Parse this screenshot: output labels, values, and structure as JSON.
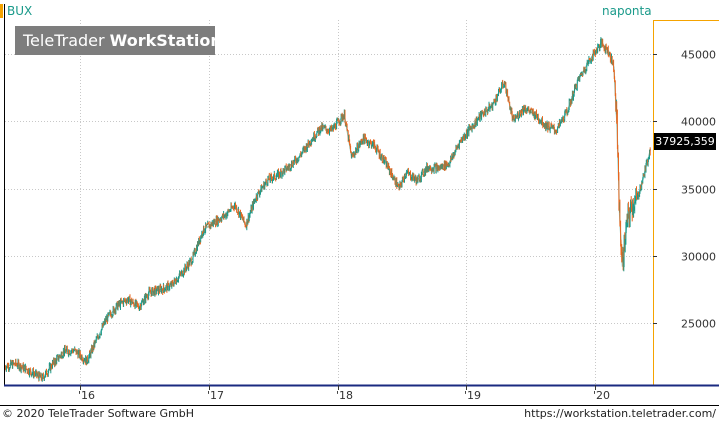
{
  "header": {
    "symbol": "BUX",
    "interval": "naponta"
  },
  "logo": {
    "brand_regular": "TeleTrader",
    "brand_bold": "WorkStation"
  },
  "last_price_label": "37925,359",
  "footer": {
    "copyright": "© 2020 TeleTrader Software GmbH",
    "url": "https://workstation.teletrader.com/"
  },
  "colors": {
    "up": "#1a9a8a",
    "down": "#e8661e",
    "accent": "#f5a300",
    "axis": "#1a2a80"
  },
  "chart_data": {
    "type": "line",
    "title": "BUX",
    "subtitle": "naponta",
    "xlabel": "",
    "ylabel": "",
    "grid": true,
    "ylim": [
      20500,
      47500
    ],
    "xlim": [
      "2015-06-01",
      "2020-06-15"
    ],
    "y_ticks": [
      25000,
      30000,
      35000,
      40000,
      45000
    ],
    "x_ticks": [
      {
        "date": "2016-01-01",
        "label": "'16"
      },
      {
        "date": "2017-01-01",
        "label": "'17"
      },
      {
        "date": "2018-01-01",
        "label": "'18"
      },
      {
        "date": "2019-01-01",
        "label": "'19"
      },
      {
        "date": "2020-01-01",
        "label": "'20"
      }
    ],
    "last_value": 37925.359,
    "series": [
      {
        "name": "BUX",
        "points": [
          [
            "2015-06-01",
            21800
          ],
          [
            "2015-07-01",
            22000
          ],
          [
            "2015-08-01",
            21600
          ],
          [
            "2015-09-15",
            20900
          ],
          [
            "2015-10-15",
            22000
          ],
          [
            "2015-11-15",
            22900
          ],
          [
            "2015-12-15",
            23000
          ],
          [
            "2016-01-20",
            22200
          ],
          [
            "2016-02-15",
            23700
          ],
          [
            "2016-03-15",
            25300
          ],
          [
            "2016-04-15",
            26300
          ],
          [
            "2016-05-15",
            26800
          ],
          [
            "2016-06-15",
            26200
          ],
          [
            "2016-07-15",
            27300
          ],
          [
            "2016-08-15",
            27500
          ],
          [
            "2016-09-15",
            27800
          ],
          [
            "2016-10-15",
            28700
          ],
          [
            "2016-11-15",
            29800
          ],
          [
            "2016-12-15",
            31900
          ],
          [
            "2017-01-15",
            32500
          ],
          [
            "2017-02-15",
            33000
          ],
          [
            "2017-03-15",
            33800
          ],
          [
            "2017-04-15",
            32300
          ],
          [
            "2017-05-15",
            34400
          ],
          [
            "2017-06-15",
            35600
          ],
          [
            "2017-07-15",
            36000
          ],
          [
            "2017-08-15",
            36600
          ],
          [
            "2017-09-15",
            37400
          ],
          [
            "2017-10-15",
            38500
          ],
          [
            "2017-11-15",
            39500
          ],
          [
            "2017-12-15",
            39300
          ],
          [
            "2018-01-20",
            40500
          ],
          [
            "2018-02-10",
            37300
          ],
          [
            "2018-03-15",
            38700
          ],
          [
            "2018-04-15",
            38200
          ],
          [
            "2018-05-15",
            37000
          ],
          [
            "2018-06-25",
            35000
          ],
          [
            "2018-07-15",
            36200
          ],
          [
            "2018-08-15",
            35600
          ],
          [
            "2018-09-15",
            36600
          ],
          [
            "2018-10-15",
            36500
          ],
          [
            "2018-11-15",
            36900
          ],
          [
            "2018-12-15",
            38500
          ],
          [
            "2019-01-15",
            39500
          ],
          [
            "2019-02-15",
            40500
          ],
          [
            "2019-03-15",
            41100
          ],
          [
            "2019-04-20",
            42900
          ],
          [
            "2019-05-15",
            40000
          ],
          [
            "2019-06-15",
            41000
          ],
          [
            "2019-07-15",
            40500
          ],
          [
            "2019-08-15",
            39700
          ],
          [
            "2019-09-15",
            39300
          ],
          [
            "2019-10-15",
            40700
          ],
          [
            "2019-11-15",
            43000
          ],
          [
            "2019-12-15",
            44400
          ],
          [
            "2020-01-20",
            45800
          ],
          [
            "2020-02-10",
            45200
          ],
          [
            "2020-02-25",
            44000
          ],
          [
            "2020-03-05",
            39500
          ],
          [
            "2020-03-12",
            33000
          ],
          [
            "2020-03-20",
            29200
          ],
          [
            "2020-04-01",
            32300
          ],
          [
            "2020-04-15",
            33700
          ],
          [
            "2020-05-01",
            34200
          ],
          [
            "2020-05-15",
            35500
          ],
          [
            "2020-06-01",
            37200
          ],
          [
            "2020-06-08",
            37925
          ]
        ]
      }
    ]
  }
}
